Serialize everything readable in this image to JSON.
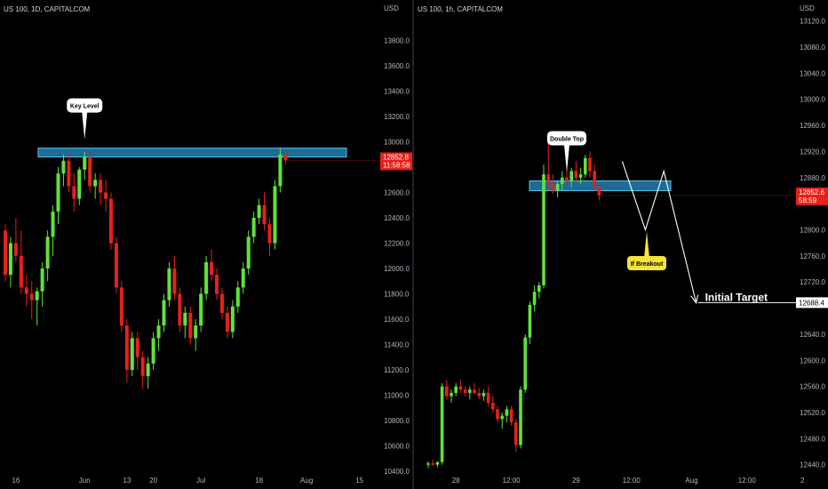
{
  "colors": {
    "up": "#5ee33b",
    "down": "#e8201a",
    "zone_fill": "#2a9ad1",
    "zone_stroke": "#56c2f2",
    "axis_text": "#b2b5be",
    "callout_white": "#ffffff",
    "callout_yellow": "#f5e33b",
    "price_tag": "#e8201a",
    "target_tag": "#ffffff"
  },
  "left_chart": {
    "title": "US 100, 1D, CAPITALCOM",
    "currency": "USD",
    "chart_data": {
      "type": "candlestick",
      "ylim": [
        10400,
        14000
      ],
      "y_ticks": [
        {
          "label": "13800.0",
          "value": 13800
        },
        {
          "label": "13600.0",
          "value": 13600
        },
        {
          "label": "13400.0",
          "value": 13400
        },
        {
          "label": "13200.0",
          "value": 13200
        },
        {
          "label": "13000.0",
          "value": 13000
        },
        {
          "label": "12800.0",
          "value": 12800
        },
        {
          "label": "12600.0",
          "value": 12600
        },
        {
          "label": "12400.0",
          "value": 12400
        },
        {
          "label": "12200.0",
          "value": 12200
        },
        {
          "label": "12000.0",
          "value": 12000
        },
        {
          "label": "11800.0",
          "value": 11800
        },
        {
          "label": "11600.0",
          "value": 11600
        },
        {
          "label": "11400.0",
          "value": 11400
        },
        {
          "label": "11200.0",
          "value": 11200
        },
        {
          "label": "11000.0",
          "value": 11000
        },
        {
          "label": "10800.0",
          "value": 10800
        },
        {
          "label": "10600.0",
          "value": 10600
        },
        {
          "label": "10400.0",
          "value": 10400
        }
      ],
      "x_ticks": [
        {
          "label": "16",
          "index": 2
        },
        {
          "label": "Jun",
          "index": 15
        },
        {
          "label": "13",
          "index": 23
        },
        {
          "label": "20",
          "index": 28
        },
        {
          "label": "Jul",
          "index": 37
        },
        {
          "label": "18",
          "index": 48
        },
        {
          "label": "Aug",
          "index": 57
        },
        {
          "label": "15",
          "index": 67
        }
      ],
      "x_count": 70,
      "candles": [
        [
          12300,
          12350,
          11900,
          11950
        ],
        [
          11950,
          12250,
          11850,
          12200
        ],
        [
          12200,
          12400,
          12050,
          12100
        ],
        [
          12100,
          12300,
          11800,
          11850
        ],
        [
          11850,
          11950,
          11700,
          11800
        ],
        [
          11800,
          11900,
          11600,
          11750
        ],
        [
          11750,
          11850,
          11550,
          11820
        ],
        [
          11820,
          12050,
          11700,
          12000
        ],
        [
          12000,
          12300,
          11900,
          12250
        ],
        [
          12250,
          12500,
          12100,
          12450
        ],
        [
          12450,
          12800,
          12350,
          12750
        ],
        [
          12750,
          12900,
          12650,
          12850
        ],
        [
          12850,
          12900,
          12600,
          12650
        ],
        [
          12650,
          12750,
          12450,
          12550
        ],
        [
          12550,
          12800,
          12500,
          12780
        ],
        [
          12780,
          12920,
          12700,
          12880
        ],
        [
          12880,
          12900,
          12600,
          12650
        ],
        [
          12650,
          12750,
          12550,
          12700
        ],
        [
          12700,
          12750,
          12500,
          12600
        ],
        [
          12600,
          12700,
          12450,
          12550
        ],
        [
          12550,
          12600,
          12150,
          12200
        ],
        [
          12200,
          12250,
          11800,
          11850
        ],
        [
          11850,
          11900,
          11500,
          11550
        ],
        [
          11550,
          11600,
          11100,
          11200
        ],
        [
          11200,
          11500,
          11150,
          11450
        ],
        [
          11450,
          11500,
          11200,
          11300
        ],
        [
          11300,
          11350,
          11050,
          11150
        ],
        [
          11150,
          11300,
          11050,
          11250
        ],
        [
          11250,
          11500,
          11200,
          11450
        ],
        [
          11450,
          11600,
          11350,
          11550
        ],
        [
          11550,
          11800,
          11500,
          11750
        ],
        [
          11750,
          12050,
          11700,
          12000
        ],
        [
          12000,
          12100,
          11750,
          11800
        ],
        [
          11800,
          11850,
          11500,
          11550
        ],
        [
          11550,
          11700,
          11450,
          11650
        ],
        [
          11650,
          11700,
          11400,
          11450
        ],
        [
          11450,
          11600,
          11350,
          11550
        ],
        [
          11550,
          11850,
          11500,
          11800
        ],
        [
          11800,
          12100,
          11750,
          12050
        ],
        [
          12050,
          12150,
          11900,
          11950
        ],
        [
          11950,
          12000,
          11750,
          11800
        ],
        [
          11800,
          11850,
          11600,
          11650
        ],
        [
          11650,
          11700,
          11450,
          11500
        ],
        [
          11500,
          11750,
          11450,
          11700
        ],
        [
          11700,
          11900,
          11650,
          11850
        ],
        [
          11850,
          12050,
          11800,
          12000
        ],
        [
          12000,
          12300,
          11950,
          12250
        ],
        [
          12250,
          12450,
          12200,
          12400
        ],
        [
          12400,
          12550,
          12350,
          12500
        ],
        [
          12500,
          12600,
          12300,
          12350
        ],
        [
          12350,
          12400,
          12100,
          12200
        ],
        [
          12200,
          12700,
          12150,
          12650
        ],
        [
          12650,
          12950,
          12600,
          12900
        ],
        [
          12900,
          12930,
          12820,
          12853
        ]
      ]
    },
    "zone": {
      "low": 12880,
      "high": 12950,
      "label": "Key Level"
    },
    "callout": {
      "text": "Key Level",
      "anchor_index": 15
    },
    "price_tag": {
      "price": "12852.8",
      "countdown": "11:58:58",
      "value": 12852.8
    }
  },
  "right_chart": {
    "title": "US 100, 1h, CAPITALCOM",
    "currency": "USD",
    "chart_data": {
      "type": "candlestick",
      "ylim": [
        12430,
        13140
      ],
      "y_ticks": [
        {
          "label": "13120.0",
          "value": 13120
        },
        {
          "label": "13080.0",
          "value": 13080
        },
        {
          "label": "13040.0",
          "value": 13040
        },
        {
          "label": "13000.0",
          "value": 13000
        },
        {
          "label": "12960.0",
          "value": 12960
        },
        {
          "label": "12920.0",
          "value": 12920
        },
        {
          "label": "12880.0",
          "value": 12880
        },
        {
          "label": "12800.0",
          "value": 12800
        },
        {
          "label": "12760.0",
          "value": 12760
        },
        {
          "label": "12720.0",
          "value": 12720
        },
        {
          "label": "12640.0",
          "value": 12640
        },
        {
          "label": "12600.0",
          "value": 12600
        },
        {
          "label": "12560.0",
          "value": 12560
        },
        {
          "label": "12520.0",
          "value": 12520
        },
        {
          "label": "12480.0",
          "value": 12480
        },
        {
          "label": "12440.0",
          "value": 12440
        }
      ],
      "x_ticks": [
        {
          "label": "28",
          "index": 6
        },
        {
          "label": "12:00",
          "index": 18
        },
        {
          "label": "29",
          "index": 32
        },
        {
          "label": "12:00",
          "index": 44
        },
        {
          "label": "Aug",
          "index": 57
        },
        {
          "label": "12:00",
          "index": 69
        },
        {
          "label": "2",
          "index": 81
        }
      ],
      "x_count": 84,
      "candles": [
        [
          12440,
          12445,
          12435,
          12442
        ],
        [
          12442,
          12448,
          12438,
          12440
        ],
        [
          12440,
          12445,
          12436,
          12444
        ],
        [
          12444,
          12565,
          12440,
          12560
        ],
        [
          12560,
          12570,
          12540,
          12545
        ],
        [
          12545,
          12555,
          12535,
          12550
        ],
        [
          12550,
          12565,
          12545,
          12560
        ],
        [
          12560,
          12570,
          12550,
          12555
        ],
        [
          12555,
          12560,
          12545,
          12550
        ],
        [
          12550,
          12560,
          12540,
          12555
        ],
        [
          12555,
          12565,
          12548,
          12550
        ],
        [
          12550,
          12558,
          12540,
          12545
        ],
        [
          12545,
          12555,
          12538,
          12550
        ],
        [
          12550,
          12560,
          12530,
          12535
        ],
        [
          12535,
          12545,
          12520,
          12525
        ],
        [
          12525,
          12530,
          12505,
          12510
        ],
        [
          12510,
          12520,
          12495,
          12515
        ],
        [
          12515,
          12530,
          12505,
          12525
        ],
        [
          12525,
          12530,
          12500,
          12505
        ],
        [
          12505,
          12510,
          12460,
          12470
        ],
        [
          12470,
          12560,
          12465,
          12555
        ],
        [
          12555,
          12640,
          12550,
          12635
        ],
        [
          12635,
          12690,
          12625,
          12685
        ],
        [
          12685,
          12715,
          12675,
          12705
        ],
        [
          12705,
          12720,
          12695,
          12715
        ],
        [
          12715,
          12900,
          12710,
          12885
        ],
        [
          12885,
          12935,
          12860,
          12870
        ],
        [
          12870,
          12885,
          12855,
          12860
        ],
        [
          12860,
          12875,
          12850,
          12870
        ],
        [
          12870,
          12890,
          12860,
          12880
        ],
        [
          12880,
          12900,
          12870,
          12875
        ],
        [
          12875,
          12895,
          12865,
          12890
        ],
        [
          12890,
          12905,
          12875,
          12880
        ],
        [
          12880,
          12895,
          12870,
          12885
        ],
        [
          12885,
          12915,
          12880,
          12910
        ],
        [
          12910,
          12920,
          12880,
          12890
        ],
        [
          12890,
          12900,
          12860,
          12865
        ],
        [
          12865,
          12870,
          12845,
          12853
        ]
      ]
    },
    "zone": {
      "low": 12860,
      "high": 12875
    },
    "callout": {
      "text": "Double Top",
      "anchor_index": 30
    },
    "breakout_callout": {
      "text": "If Breakout"
    },
    "target_label": "Initial Target",
    "target_tag": {
      "price": "12688.4",
      "value": 12688.4
    },
    "price_tag": {
      "price": "12852.6",
      "countdown": "58:59",
      "value": 12852.6
    },
    "projection": [
      {
        "index": 42,
        "value": 12905
      },
      {
        "index": 47,
        "value": 12800
      },
      {
        "index": 51,
        "value": 12890
      },
      {
        "index": 58,
        "value": 12688
      }
    ]
  }
}
